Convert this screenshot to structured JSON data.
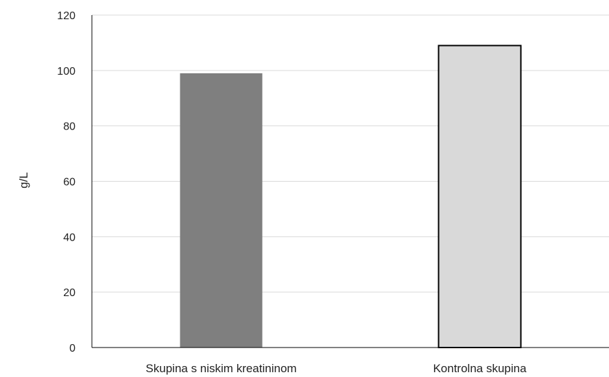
{
  "chart_data": {
    "type": "bar",
    "categories": [
      "Skupina s niskim kreatininom",
      "Kontrolna skupina"
    ],
    "values": [
      99,
      109
    ],
    "colors": [
      "#7f7f7f",
      "#d9d9d9"
    ],
    "bar_outline": [
      "none",
      "#000000"
    ],
    "title": "",
    "xlabel": "",
    "ylabel": "g/L",
    "ylim": [
      0,
      120
    ],
    "yticks": [
      0,
      20,
      40,
      60,
      80,
      100,
      120
    ],
    "grid": true,
    "legend": "none"
  }
}
